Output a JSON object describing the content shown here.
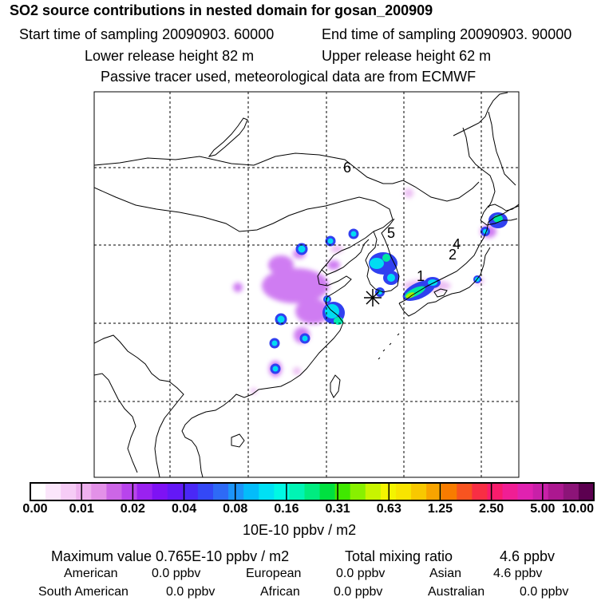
{
  "header": {
    "title": "SO2 source contributions in nested domain for gosan_200909",
    "start_time": "Start time of sampling 20090903. 60000",
    "end_time": "End time of sampling 20090903. 90000",
    "lower_release": "Lower release height   82 m",
    "upper_release": "Upper release height   62 m",
    "tracer_note": "Passive tracer used, meteorological data are from ECMWF"
  },
  "map": {
    "markers": [
      "1",
      "2",
      "4",
      "5",
      "6"
    ],
    "receptor_symbol": "✳"
  },
  "colorbar": {
    "ticks": [
      "0.00",
      "0.01",
      "0.02",
      "0.04",
      "0.08",
      "0.16",
      "0.31",
      "0.63",
      "1.25",
      "2.50",
      "5.00",
      "10.00"
    ],
    "unit": "10E-10 ppbv / m2",
    "colors": [
      "#ffffff",
      "#fbe6fb",
      "#f6ccf6",
      "#eeb0ee",
      "#e391e8",
      "#cc66e6",
      "#b844ec",
      "#9a22f0",
      "#7e12f4",
      "#6418f6",
      "#4a28f6",
      "#3448f6",
      "#2e6af6",
      "#1c94f8",
      "#04bcfa",
      "#00e0f4",
      "#00f8e4",
      "#00f4b4",
      "#00ec80",
      "#00e040",
      "#40e800",
      "#88f000",
      "#c8f400",
      "#f4f400",
      "#f8e400",
      "#f8c800",
      "#f8a400",
      "#f87c00",
      "#f85420",
      "#f82e44",
      "#f81c6c",
      "#f01e94",
      "#e022b0",
      "#c820a8",
      "#ac1890",
      "#8c1478",
      "#5c0050"
    ]
  },
  "summary": {
    "max_label": "Maximum value  0.765E-10 ppbv / m2",
    "mix_label": "Total mixing ratio",
    "mix_value": "4.6 ppbv",
    "regions": [
      {
        "name": "American",
        "value": "0.0 ppbv"
      },
      {
        "name": "European",
        "value": "0.0 ppbv"
      },
      {
        "name": "Asian",
        "value": "4.6 ppbv"
      },
      {
        "name": "South American",
        "value": "0.0 ppbv"
      },
      {
        "name": "African",
        "value": "0.0 ppbv"
      },
      {
        "name": "Australian",
        "value": "0.0 ppbv"
      }
    ]
  }
}
